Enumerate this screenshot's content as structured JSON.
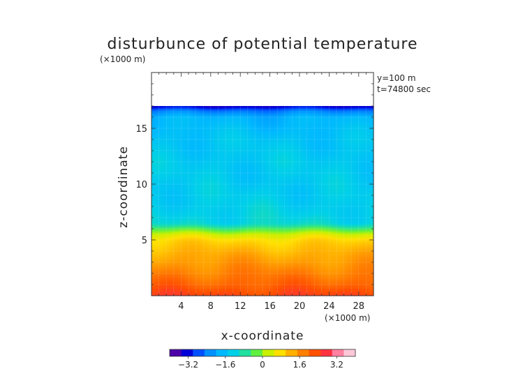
{
  "chart_data": {
    "type": "heatmap",
    "title": "disturbunce of potential temperature",
    "xlabel": "x-coordinate",
    "ylabel": "z-coordinate",
    "x_unit": "(×1000 m)",
    "y_unit": "(×1000 m)",
    "annotations": [
      "y=100 m",
      "t=74800 sec"
    ],
    "xlim": [
      0,
      30
    ],
    "ylim": [
      0,
      20
    ],
    "x_ticks": [
      4,
      8,
      12,
      16,
      20,
      24,
      28
    ],
    "y_ticks": [
      5,
      10,
      15
    ],
    "colorbar": {
      "range": [
        -4,
        4
      ],
      "ticks": [
        -3.2,
        -1.6,
        0,
        1.6,
        3.2
      ],
      "tick_labels": [
        "−3.2",
        "−1.6",
        "0",
        "1.6",
        "3.2"
      ],
      "colors": [
        "#4b00a8",
        "#0000d8",
        "#0050ff",
        "#0090ff",
        "#00b8ff",
        "#00d0e8",
        "#20e0a0",
        "#60f040",
        "#c8f000",
        "#ffe000",
        "#ffb000",
        "#ff8000",
        "#ff5000",
        "#ff3040",
        "#ff80a0",
        "#ffc8d8"
      ]
    },
    "data_top_height": 17,
    "profile": {
      "z": [
        0,
        1,
        2,
        3,
        4,
        5,
        5.5,
        6,
        6.5,
        7,
        8,
        10,
        12,
        14,
        16,
        16.6,
        17
      ],
      "value": [
        2.6,
        2.2,
        1.9,
        1.6,
        1.3,
        0.9,
        0.4,
        -0.4,
        -1.2,
        -1.3,
        -1.4,
        -1.5,
        -1.5,
        -1.6,
        -1.9,
        -2.6,
        -3.6
      ]
    }
  }
}
